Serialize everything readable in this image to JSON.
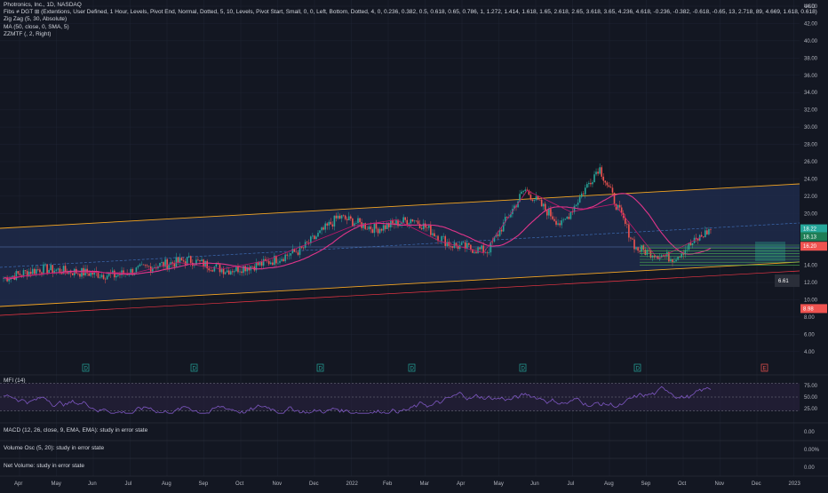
{
  "legend": {
    "symbol_line": "Photronics, Inc., 1D, NASDAQ",
    "fibs_line": "Fibs ≠ DGT ⊞ (Extentions, User Defined, 1 Hour, Levels, Pivot End, Normal, Dotted, 5, 10, Levels, Pivot Start, Small, 0, 0, Left, Bottom, Dotted, 4, 0, 0.236, 0.382, 0.5, 0.618, 0.65, 0.786, 1, 1.272, 1.414, 1.618, 1.65, 2.618, 2.65, 3.618, 3.65, 4.236, 4.618, -0.236, -0.382, -0.618, -0.65, 13, 2.718, 89, 4.669, 1.618, 0.618)",
    "zigzag_line": "Zig Zag (5, 30, Absolute)",
    "ma_line": "MA (50, close, 0, SMA, 5)",
    "zzmtf_line": "ZZMTF (, 2, Right)"
  },
  "panes": {
    "mfi_label": "MFI (14)",
    "macd_label": "MACD (12, 26, close, 9, EMA, EMA): study in error state",
    "volume_osc_label": "Volume Osc (5, 20): study in error state",
    "net_volume_label": "Net Volume: study in error state"
  },
  "price_axis": {
    "currency": "USD",
    "ticks": [
      "44.00",
      "42.00",
      "40.00",
      "38.00",
      "36.00",
      "34.00",
      "32.00",
      "30.00",
      "28.00",
      "26.00",
      "24.00",
      "22.00",
      "20.00",
      "18.00",
      "16.00",
      "14.00",
      "12.00",
      "10.00",
      "8.00",
      "6.00",
      "4.00"
    ],
    "tick_values": [
      44,
      42,
      40,
      38,
      36,
      34,
      32,
      30,
      28,
      26,
      24,
      22,
      20,
      18,
      16,
      14,
      12,
      10,
      8,
      6,
      4
    ]
  },
  "mfi_axis": {
    "ticks": [
      "75.00",
      "50.00",
      "25.00"
    ],
    "tick_values": [
      75,
      50,
      25
    ]
  },
  "macd_axis": {
    "ticks": [
      "0.00"
    ]
  },
  "volume_axis": {
    "ticks": [
      "0.00%"
    ]
  },
  "net_axis": {
    "ticks": [
      "0.00"
    ]
  },
  "price_tags": {
    "last_price": "18.22",
    "green_tag": "18.13",
    "red_tag": "16.20",
    "low_tag": "8.98",
    "measure_tag": "6.61"
  },
  "time_axis": {
    "labels": [
      "Apr",
      "May",
      "Jun",
      "Jul",
      "Aug",
      "Sep",
      "Oct",
      "Nov",
      "Dec",
      "2022",
      "Feb",
      "Mar",
      "Apr",
      "May",
      "Jun",
      "Jul",
      "Aug",
      "Sep",
      "Oct",
      "Nov",
      "Dec",
      "2023"
    ]
  },
  "event_markers": {
    "earnings": "E",
    "dividend": "D"
  },
  "colors": {
    "background": "#131722",
    "channel_fill": "#1e2a4a",
    "channel_line": "#f5a623",
    "ma_line": "#e0358a",
    "zigzag_line": "#c2186b",
    "up_candle": "#26a69a",
    "down_candle": "#ef5350",
    "mfi_line": "#7e57c2",
    "mfi_band": "#2a2140",
    "fib_green": "#4caf50",
    "red_line": "#f23645",
    "grid": "#1f2433"
  },
  "chart_data": {
    "type": "candlestick",
    "title": "Photronics, Inc., 1D, NASDAQ",
    "ylabel": "USD",
    "x_range": [
      "2021-04",
      "2023-01"
    ],
    "y_range": [
      3,
      45
    ],
    "approx_close_series": [
      {
        "date": "2021-04",
        "close": 12.5
      },
      {
        "date": "2021-05",
        "close": 13.6
      },
      {
        "date": "2021-06",
        "close": 13.2
      },
      {
        "date": "2021-07",
        "close": 12.8
      },
      {
        "date": "2021-08",
        "close": 13.9
      },
      {
        "date": "2021-09",
        "close": 14.6
      },
      {
        "date": "2021-10",
        "close": 13.4
      },
      {
        "date": "2021-11",
        "close": 14.2
      },
      {
        "date": "2021-12",
        "close": 15.8
      },
      {
        "date": "2022-01",
        "close": 19.6
      },
      {
        "date": "2022-02",
        "close": 18.2
      },
      {
        "date": "2022-03",
        "close": 19.4
      },
      {
        "date": "2022-04",
        "close": 16.4
      },
      {
        "date": "2022-05",
        "close": 15.6
      },
      {
        "date": "2022-06",
        "close": 22.8
      },
      {
        "date": "2022-07",
        "close": 18.6
      },
      {
        "date": "2022-08",
        "close": 25.4
      },
      {
        "date": "2022-09",
        "close": 15.9
      },
      {
        "date": "2022-10",
        "close": 14.8
      },
      {
        "date": "2022-11",
        "close": 18.2
      }
    ],
    "indicators": {
      "mfi_range": [
        0,
        100
      ],
      "mfi_levels": [
        80,
        50,
        20
      ]
    }
  }
}
